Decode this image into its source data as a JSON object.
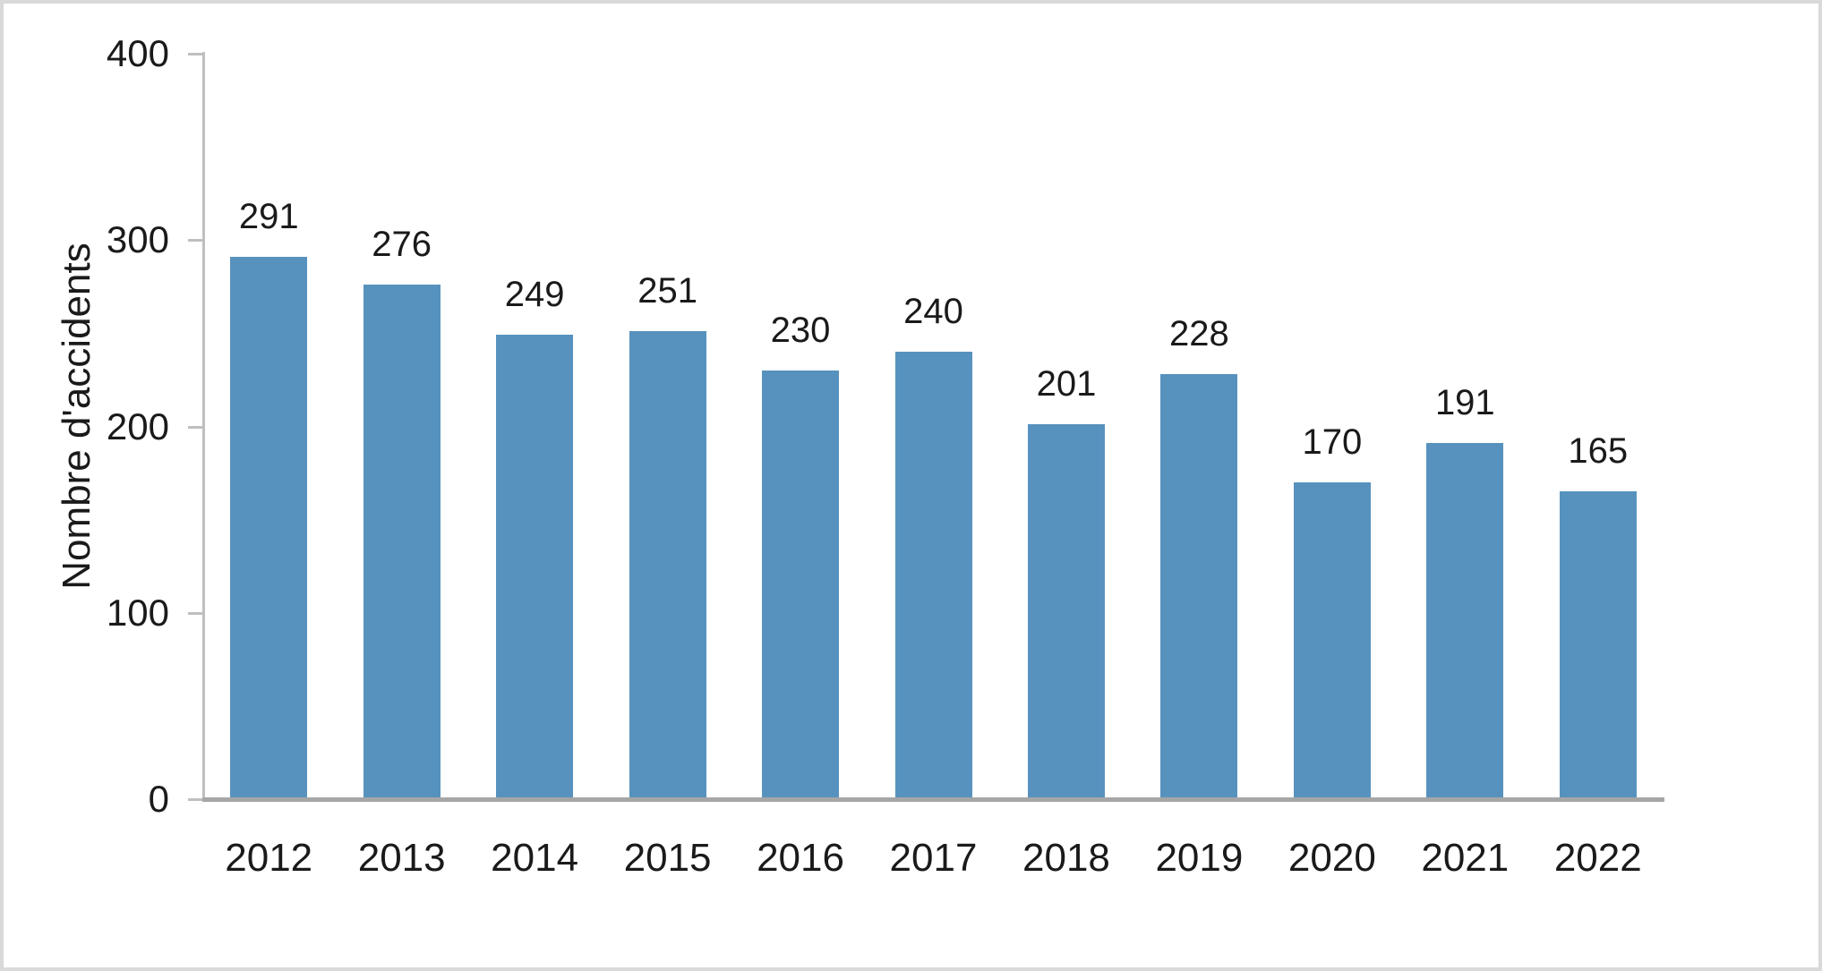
{
  "chart_data": {
    "type": "bar",
    "title": "",
    "xlabel": "",
    "ylabel": "Nombre d'accidents",
    "categories": [
      "2012",
      "2013",
      "2014",
      "2015",
      "2016",
      "2017",
      "2018",
      "2019",
      "2020",
      "2021",
      "2022"
    ],
    "values": [
      291,
      276,
      249,
      251,
      230,
      240,
      201,
      228,
      170,
      191,
      165
    ],
    "data_labels": [
      "291",
      "276",
      "249",
      "251",
      "230",
      "240",
      "201",
      "228",
      "170",
      "191",
      "165"
    ],
    "ylim": [
      0,
      400
    ],
    "yticks": [
      0,
      100,
      200,
      300,
      400
    ],
    "grid": false,
    "legend_position": "none",
    "data_labels_shown": true,
    "colors": {
      "bar": "#5792be",
      "axis_line": "#bfbfbf",
      "baseline": "#a6a6a6",
      "text": "#1a1a1a",
      "frame_border": "#d9d9d9",
      "background": "#ffffff"
    }
  }
}
